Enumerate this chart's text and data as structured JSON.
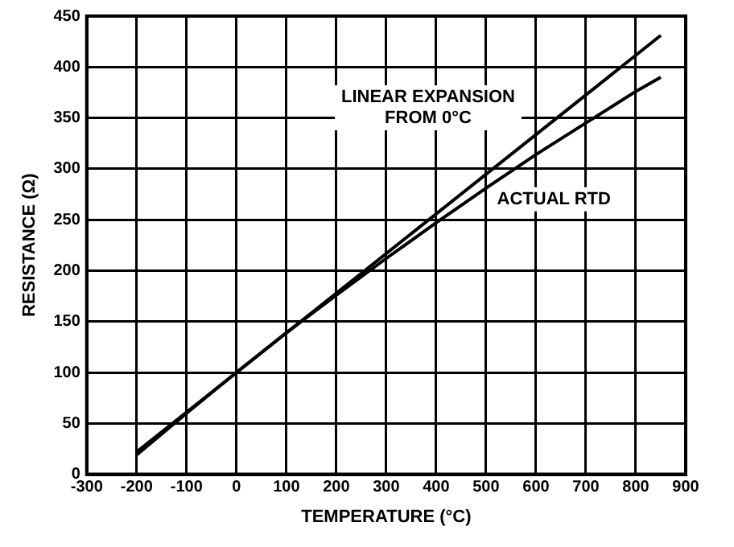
{
  "chart_data": {
    "type": "line",
    "xlabel": "TEMPERATURE (°C)",
    "ylabel": "RESISTANCE (Ω)",
    "xlim": [
      -300,
      900
    ],
    "xticks": [
      -300,
      -200,
      -100,
      0,
      100,
      200,
      300,
      400,
      500,
      600,
      700,
      800,
      900
    ],
    "ylim": [
      0,
      450
    ],
    "yticks": [
      0,
      50,
      100,
      150,
      200,
      250,
      300,
      350,
      400,
      450
    ],
    "grid": true,
    "legend": false,
    "marker": "none",
    "line_style": "solid",
    "series": [
      {
        "name": "LINEAR EXPANSION FROM 0°C",
        "color": "#000000",
        "x": [
          -200,
          850
        ],
        "values": [
          22,
          431
        ]
      },
      {
        "name": "ACTUAL RTD",
        "color": "#000000",
        "x": [
          -200,
          -100,
          0,
          100,
          200,
          300,
          400,
          500,
          600,
          700,
          800,
          850
        ],
        "values": [
          19,
          60,
          100,
          139,
          176,
          212,
          247,
          281,
          314,
          345,
          376,
          390
        ]
      }
    ]
  }
}
